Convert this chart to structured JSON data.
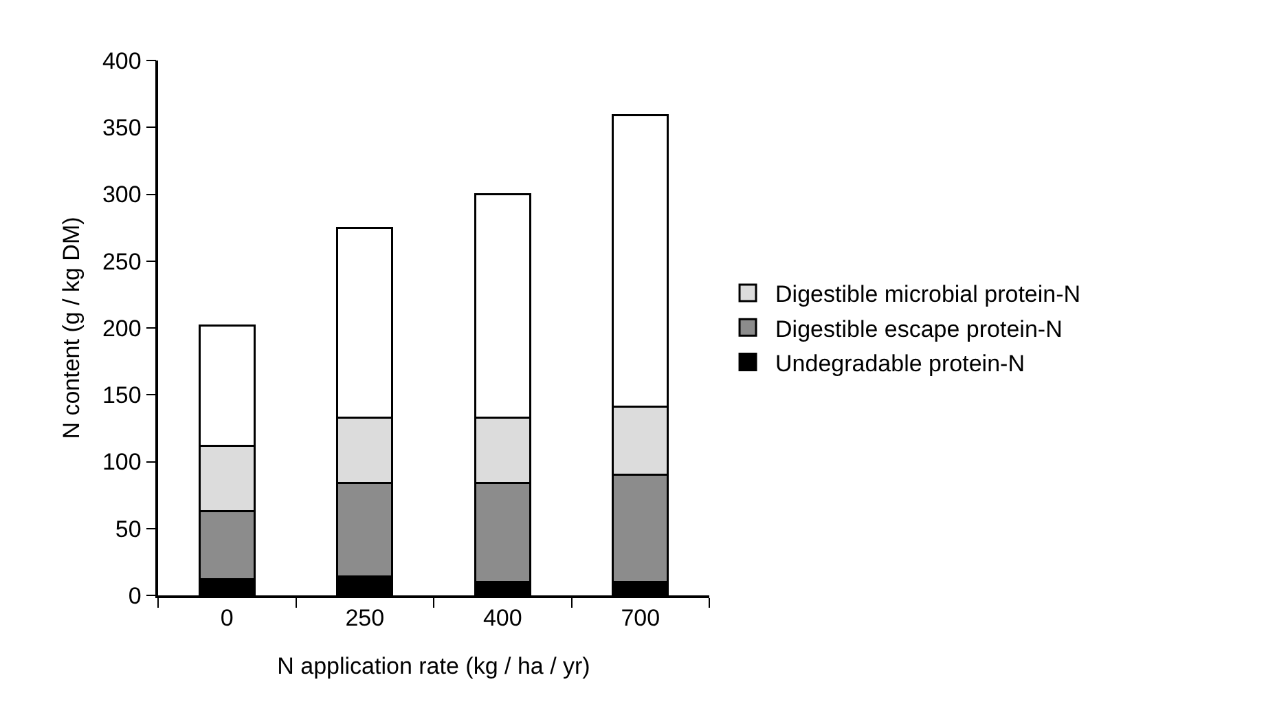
{
  "chart_data": {
    "type": "bar",
    "stacked": true,
    "xlabel": "N application rate (kg / ha / yr)",
    "ylabel": "N content (g / kg DM)",
    "categories": [
      "0",
      "250",
      "400",
      "700"
    ],
    "series": [
      {
        "name": "Undegradable protein-N",
        "color": "#000000",
        "values": [
          12,
          14,
          10,
          10
        ]
      },
      {
        "name": "Digestible escape protein-N",
        "color": "#8c8c8c",
        "values": [
          51,
          70,
          74,
          80
        ]
      },
      {
        "name": "Digestible microbial protein-N",
        "color": "#dcdcdc",
        "values": [
          49,
          49,
          49,
          51
        ]
      },
      {
        "color": "#ffffff",
        "values": [
          90,
          142,
          167,
          218
        ]
      }
    ],
    "ylim": [
      0,
      400
    ],
    "yticks": [
      0,
      50,
      100,
      150,
      200,
      250,
      300,
      350,
      400
    ],
    "grid": false,
    "legend": "right"
  }
}
